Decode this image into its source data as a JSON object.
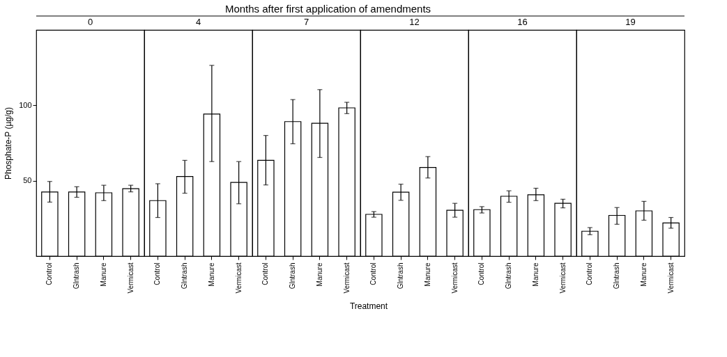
{
  "chart_data": [
    {
      "type": "bar",
      "title": "0",
      "ylabel": "Phosphate-P (µg/g)",
      "categories": [
        "Control",
        "Glntrash",
        "Manure",
        "Vermicast"
      ],
      "values": [
        42.5,
        42.5,
        42,
        44.7
      ],
      "errors": [
        [
          35.8,
          49.5
        ],
        [
          39,
          46
        ],
        [
          36.8,
          47
        ],
        [
          42.6,
          47
        ]
      ],
      "color": "#ffffff",
      "ylim": [
        0,
        150
      ],
      "yticks": [
        50,
        100
      ],
      "grid": false
    },
    {
      "type": "bar",
      "title": "4",
      "categories": [
        "Control",
        "Glntrash",
        "Manure",
        "Vermicast"
      ],
      "values": [
        36.8,
        52.8,
        94.2,
        48.9
      ],
      "errors": [
        [
          25.6,
          48
        ],
        [
          41.7,
          63.5
        ],
        [
          62.7,
          126.5
        ],
        [
          34.7,
          62.7
        ]
      ],
      "color": "#ffffff",
      "ylim": [
        0,
        150
      ],
      "tick_labels": "x",
      "grid": false
    },
    {
      "type": "bar",
      "title": "7",
      "annotations": [
        "Months after first application of amendments"
      ],
      "categories": [
        "Control",
        "Glntrash",
        "Manure",
        "Vermicast"
      ],
      "values": [
        63.5,
        89.2,
        88.1,
        98.3
      ],
      "errors": [
        [
          47.2,
          80
        ],
        [
          74.5,
          103.8
        ],
        [
          65.4,
          110.4
        ],
        [
          94.5,
          102
        ]
      ],
      "color": "#ffffff",
      "ylim": [
        0,
        150
      ],
      "tick_labels": "x",
      "grid": false
    },
    {
      "type": "bar",
      "title": "12",
      "xlabel": "Treatment",
      "categories": [
        "Control",
        "Glntrash",
        "Manure",
        "Vermicast"
      ],
      "values": [
        27.7,
        42.4,
        58.8,
        30.4
      ],
      "errors": [
        [
          25.8,
          29.5
        ],
        [
          37,
          47.7
        ],
        [
          51.8,
          66
        ],
        [
          25.8,
          35
        ]
      ],
      "color": "#ffffff",
      "ylim": [
        0,
        150
      ],
      "tick_labels": "x",
      "grid": false
    },
    {
      "type": "bar",
      "title": "16",
      "categories": [
        "Control",
        "Glntrash",
        "Manure",
        "Vermicast"
      ],
      "values": [
        30.8,
        39.7,
        40.7,
        35
      ],
      "errors": [
        [
          28.6,
          32.8
        ],
        [
          35.7,
          43.3
        ],
        [
          36.8,
          45
        ],
        [
          32,
          37.7
        ]
      ],
      "color": "#ffffff",
      "ylim": [
        0,
        150
      ],
      "tick_labels": "x",
      "grid": false
    },
    {
      "type": "bar",
      "title": "19",
      "categories": [
        "Control",
        "Glntrash",
        "Manure",
        "Vermicast"
      ],
      "values": [
        16.5,
        27,
        30,
        22
      ],
      "errors": [
        [
          14.2,
          18.9
        ],
        [
          21.1,
          32.2
        ],
        [
          23.8,
          36.3
        ],
        [
          18.5,
          25.6
        ]
      ],
      "color": "#ffffff",
      "ylim": [
        0,
        150
      ],
      "tick_labels": "x",
      "grid": false
    }
  ]
}
